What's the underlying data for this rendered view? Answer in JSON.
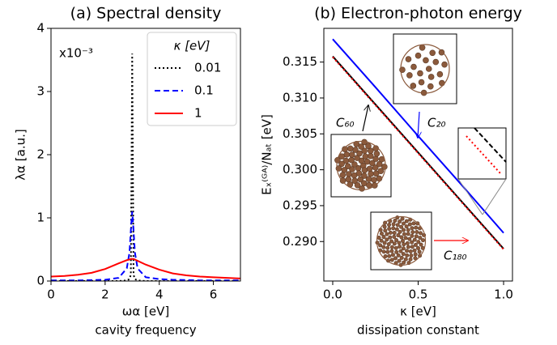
{
  "chart_data": [
    {
      "type": "line",
      "title": "(a) Spectral density",
      "y_label": "λα [a.u.]",
      "x_label": "ωα [eV]",
      "x_label2": "cavity frequency",
      "annotation": "x10⁻³",
      "legend_title": "κ [eV]",
      "legend": "upper right",
      "xlim": [
        0,
        7
      ],
      "xticks": [
        0,
        2,
        4,
        6
      ],
      "ylim": [
        0,
        4
      ],
      "yticks": [
        0,
        1,
        2,
        3,
        4
      ],
      "x": [
        0,
        0.5,
        1,
        1.5,
        2,
        2.5,
        2.8,
        2.9,
        2.95,
        3,
        3.05,
        3.1,
        3.2,
        3.5,
        4,
        4.5,
        5,
        5.5,
        6,
        6.5,
        7
      ],
      "series": [
        {
          "name": "0.01",
          "color": "#000000",
          "line_style": "dotted",
          "values": [
            0,
            0,
            0,
            0,
            0,
            0,
            0.01,
            0.03,
            0.1,
            3.6,
            0.1,
            0.03,
            0.01,
            0,
            0,
            0,
            0,
            0,
            0,
            0,
            0
          ]
        },
        {
          "name": "0.1",
          "color": "#0000ff",
          "line_style": "dashed",
          "values": [
            0.01,
            0.01,
            0.01,
            0.015,
            0.02,
            0.05,
            0.2,
            0.45,
            0.8,
            1.1,
            0.8,
            0.45,
            0.2,
            0.06,
            0.03,
            0.02,
            0.015,
            0.01,
            0.01,
            0.01,
            0.01
          ]
        },
        {
          "name": "1",
          "color": "#ff0000",
          "line_style": "solid",
          "values": [
            0.07,
            0.08,
            0.1,
            0.13,
            0.19,
            0.28,
            0.33,
            0.34,
            0.35,
            0.35,
            0.35,
            0.34,
            0.32,
            0.26,
            0.18,
            0.12,
            0.09,
            0.07,
            0.06,
            0.05,
            0.04
          ]
        }
      ]
    },
    {
      "type": "line",
      "title": "(b) Electron-photon energy",
      "y_label": "Eₓ⁽ᴳᴬ⁾/Nₐₜ [eV]",
      "x_label": "κ [eV]",
      "x_label2": "dissipation constant",
      "xlim": [
        -0.052,
        1.052
      ],
      "xticks": [
        {
          "value": 0,
          "label": "0.0"
        },
        0.5,
        {
          "value": 1,
          "label": "1.0"
        }
      ],
      "ylim": [
        0.2845,
        0.3197
      ],
      "yticks": [
        {
          "value": 0.29,
          "label": "0.290"
        },
        0.295,
        {
          "value": 0.3,
          "label": "0.300"
        },
        0.305,
        {
          "value": 0.31,
          "label": "0.310"
        },
        0.315
      ],
      "x": [
        0,
        0.25,
        0.5,
        0.75,
        1
      ],
      "series": [
        {
          "name": "C₆₀",
          "color": "#000000",
          "line_style": "solid",
          "values": [
            0.3158,
            0.3091,
            0.3024,
            0.2957,
            0.289
          ]
        },
        {
          "name": "C₂₀",
          "color": "#0000ff",
          "line_style": "solid",
          "values": [
            0.3182,
            0.3115,
            0.3047,
            0.298,
            0.2912
          ]
        },
        {
          "name": "C₁₈₀",
          "color": "#ff0000",
          "line_style": "dotted",
          "values": [
            0.3157,
            0.309,
            0.3023,
            0.2956,
            0.2889
          ]
        }
      ]
    }
  ]
}
